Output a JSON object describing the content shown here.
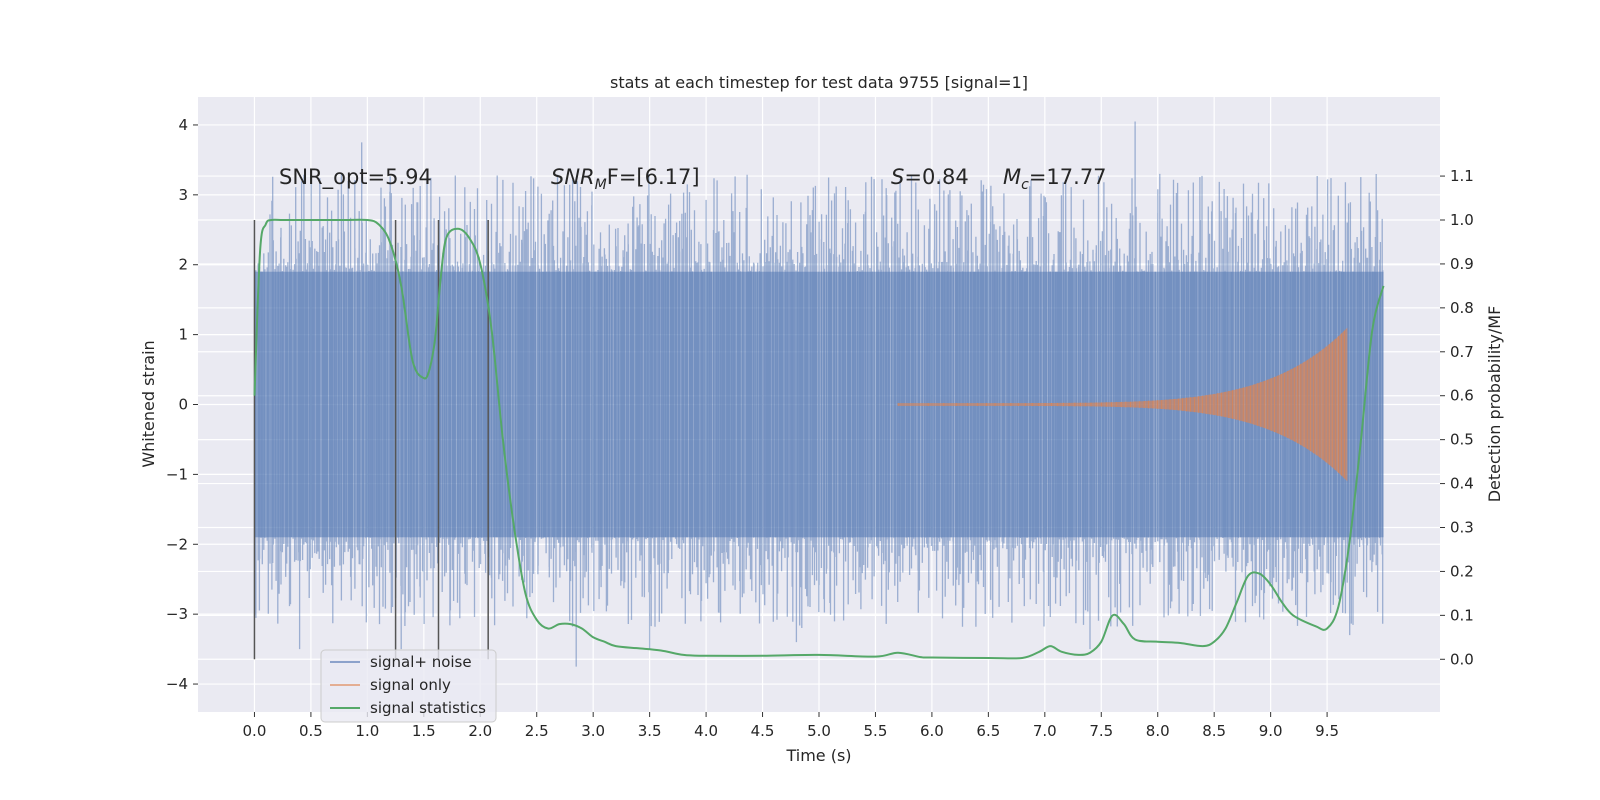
{
  "chart_data": {
    "type": "line",
    "title": "stats at each timestep for test data 9755 [signal=1]",
    "xlabel": "Time (s)",
    "ylabel": "Whitened strain",
    "ylabel_right": "Detection probability/MF",
    "xlim": [
      -0.5,
      10.5
    ],
    "ylim": [
      -4.4,
      4.4
    ],
    "ylim_right": [
      -0.12,
      1.28
    ],
    "grid": true,
    "legend_position": "lower-left",
    "x_ticks": [
      "0.0",
      "0.5",
      "1.0",
      "1.5",
      "2.0",
      "2.5",
      "3.0",
      "3.5",
      "4.0",
      "4.5",
      "5.0",
      "5.5",
      "6.0",
      "6.5",
      "7.0",
      "7.5",
      "8.0",
      "8.5",
      "9.0",
      "9.5"
    ],
    "y_ticks": [
      "4",
      "3",
      "2",
      "1",
      "0",
      "−1",
      "−2",
      "−3",
      "−4"
    ],
    "y_tick_values": [
      4,
      3,
      2,
      1,
      0,
      -1,
      -2,
      -3,
      -4
    ],
    "y2_ticks": [
      "1.1",
      "1.0",
      "0.9",
      "0.8",
      "0.7",
      "0.6",
      "0.5",
      "0.4",
      "0.3",
      "0.2",
      "0.1",
      "0.0"
    ],
    "y2_tick_values": [
      1.1,
      1.0,
      0.9,
      0.8,
      0.7,
      0.6,
      0.5,
      0.4,
      0.3,
      0.2,
      0.1,
      0.0
    ],
    "annotations": {
      "snr_opt": "SNR_opt=5.94",
      "snr_mf_italic": "SNR",
      "snr_mf_sub": "M",
      "snr_mf_tail": "F=[6.17]",
      "s_italic": "S",
      "s_tail": "=0.84",
      "mc_italic": "M",
      "mc_sub": "c",
      "mc_tail": "=17.77"
    },
    "vertical_markers_x": [
      0.0,
      1.25,
      1.63,
      2.07
    ],
    "series": [
      {
        "name": "signal+ noise",
        "color": "#4c72b0",
        "x_range": [
          0.0,
          10.0
        ],
        "envelope": [
          -1.9,
          1.9
        ],
        "typical_peaks": [
          -3.2,
          3.3
        ],
        "notable_peaks": [
          [
            0.4,
            -3.5
          ],
          [
            0.95,
            3.75
          ],
          [
            1.3,
            -3.5
          ],
          [
            2.85,
            -3.75
          ],
          [
            3.5,
            -3.5
          ],
          [
            4.8,
            -3.4
          ],
          [
            7.8,
            4.05
          ],
          [
            7.4,
            -3.5
          ],
          [
            9.7,
            -3.3
          ]
        ]
      },
      {
        "name": "signal only",
        "color": "#dd8452",
        "x_range": [
          5.7,
          9.68
        ],
        "amplitude_start": 0.02,
        "amplitude_end": 1.1
      },
      {
        "name": "signal statistics",
        "color": "#55a868",
        "axis": "right",
        "x": [
          0.0,
          0.05,
          0.1,
          0.15,
          0.25,
          0.4,
          0.6,
          0.8,
          1.0,
          1.1,
          1.2,
          1.3,
          1.4,
          1.5,
          1.55,
          1.6,
          1.65,
          1.7,
          1.8,
          1.9,
          2.0,
          2.1,
          2.2,
          2.3,
          2.4,
          2.5,
          2.6,
          2.7,
          2.8,
          2.9,
          3.0,
          3.1,
          3.2,
          3.4,
          3.6,
          3.8,
          4.0,
          4.5,
          5.0,
          5.5,
          5.7,
          5.9,
          6.0,
          6.5,
          6.8,
          6.95,
          7.05,
          7.15,
          7.3,
          7.4,
          7.5,
          7.6,
          7.7,
          7.8,
          8.0,
          8.2,
          8.4,
          8.5,
          8.6,
          8.7,
          8.8,
          8.9,
          9.0,
          9.1,
          9.2,
          9.4,
          9.5,
          9.6,
          9.7,
          9.8,
          9.9,
          10.0
        ],
        "values": [
          0.6,
          0.93,
          0.99,
          1.0,
          1.0,
          1.0,
          1.0,
          1.0,
          1.0,
          0.99,
          0.95,
          0.85,
          0.68,
          0.64,
          0.66,
          0.73,
          0.87,
          0.96,
          0.98,
          0.96,
          0.9,
          0.75,
          0.5,
          0.3,
          0.15,
          0.09,
          0.07,
          0.08,
          0.08,
          0.07,
          0.05,
          0.04,
          0.03,
          0.025,
          0.02,
          0.01,
          0.008,
          0.008,
          0.01,
          0.006,
          0.015,
          0.005,
          0.004,
          0.003,
          0.003,
          0.017,
          0.03,
          0.017,
          0.01,
          0.015,
          0.04,
          0.1,
          0.08,
          0.045,
          0.04,
          0.037,
          0.03,
          0.04,
          0.07,
          0.13,
          0.19,
          0.195,
          0.17,
          0.13,
          0.1,
          0.075,
          0.07,
          0.12,
          0.27,
          0.5,
          0.75,
          0.85
        ]
      }
    ]
  }
}
